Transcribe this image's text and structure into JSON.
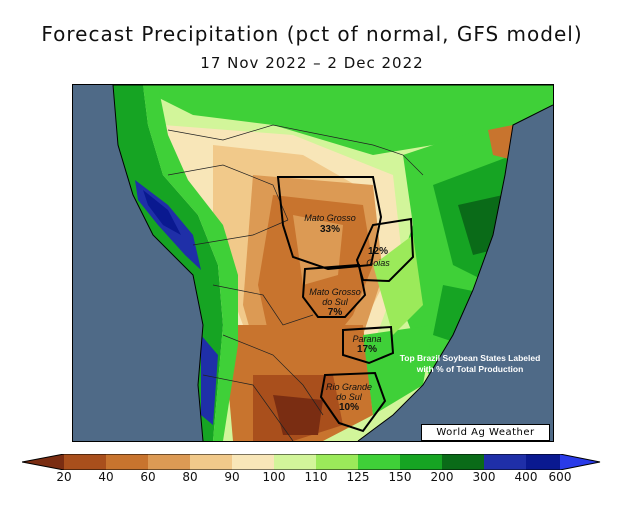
{
  "title": "Forecast Precipitation (pct of normal, GFS model)",
  "subtitle": "17 Nov 2022 – 2 Dec 2022",
  "states": [
    {
      "name": "Mato Grosso",
      "pct": "33%"
    },
    {
      "name": "Goias",
      "pct": "12%"
    },
    {
      "name": "Mato Grosso do Sul",
      "pct": "7%"
    },
    {
      "name": "Parana",
      "pct": "17%"
    },
    {
      "name": "Rio Grande do Sul",
      "pct": "10%"
    }
  ],
  "note": "Top Brazil Soybean States Labeled with % of Total Production",
  "credit": "World Ag Weather",
  "legend": {
    "ticks": [
      "20",
      "40",
      "60",
      "80",
      "90",
      "100",
      "110",
      "125",
      "150",
      "200",
      "300",
      "400",
      "600"
    ],
    "colors": [
      "#7a2d12",
      "#a94f1c",
      "#c8742e",
      "#dc9a54",
      "#f1c98a",
      "#f8e6b8",
      "#d2f59a",
      "#9bea5a",
      "#3fd038",
      "#16a423",
      "#0a6b18",
      "#1f2fa8",
      "#0a1990",
      "#2a3be8"
    ]
  },
  "colors": {
    "ocean": "#4f6a87",
    "land_border": "#000000"
  }
}
